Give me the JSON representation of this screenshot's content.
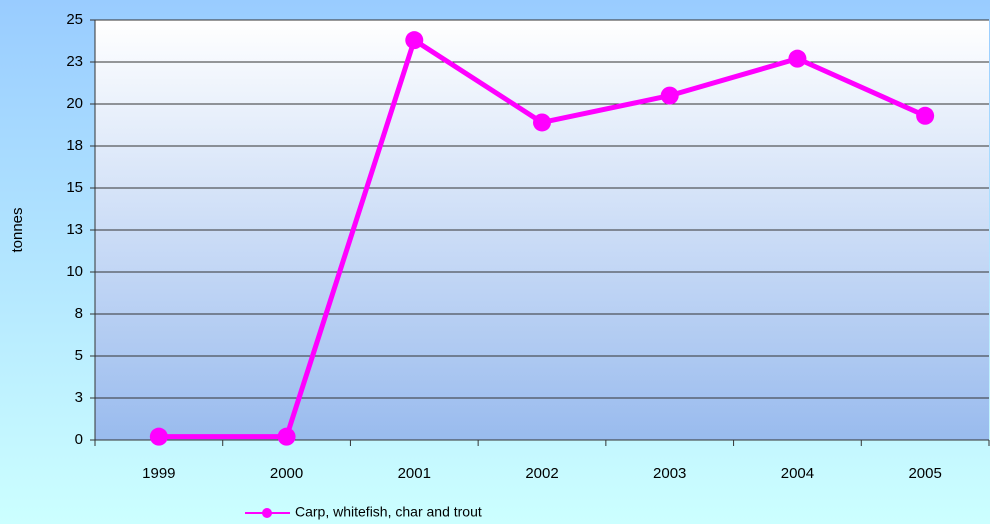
{
  "chart_data": {
    "type": "line",
    "y_label": "tonnes",
    "categories": [
      "1999",
      "2000",
      "2001",
      "2002",
      "2003",
      "2004",
      "2005"
    ],
    "series": [
      {
        "name": "Carp, whitefish, char and trout",
        "color": "#ff00ff",
        "values": [
          0.2,
          0.2,
          23.8,
          18.9,
          20.5,
          22.7,
          19.3
        ]
      }
    ],
    "ylim": [
      0,
      25
    ],
    "yticks": [
      0,
      {
        "value": 2.5,
        "label": "3"
      },
      5,
      {
        "value": 7.5,
        "label": "8"
      },
      10,
      {
        "value": 12.5,
        "label": "13"
      },
      15,
      {
        "value": 17.5,
        "label": "18"
      },
      20,
      {
        "value": 22.5,
        "label": "23"
      },
      25
    ],
    "grid": true,
    "legend": "bottom"
  }
}
